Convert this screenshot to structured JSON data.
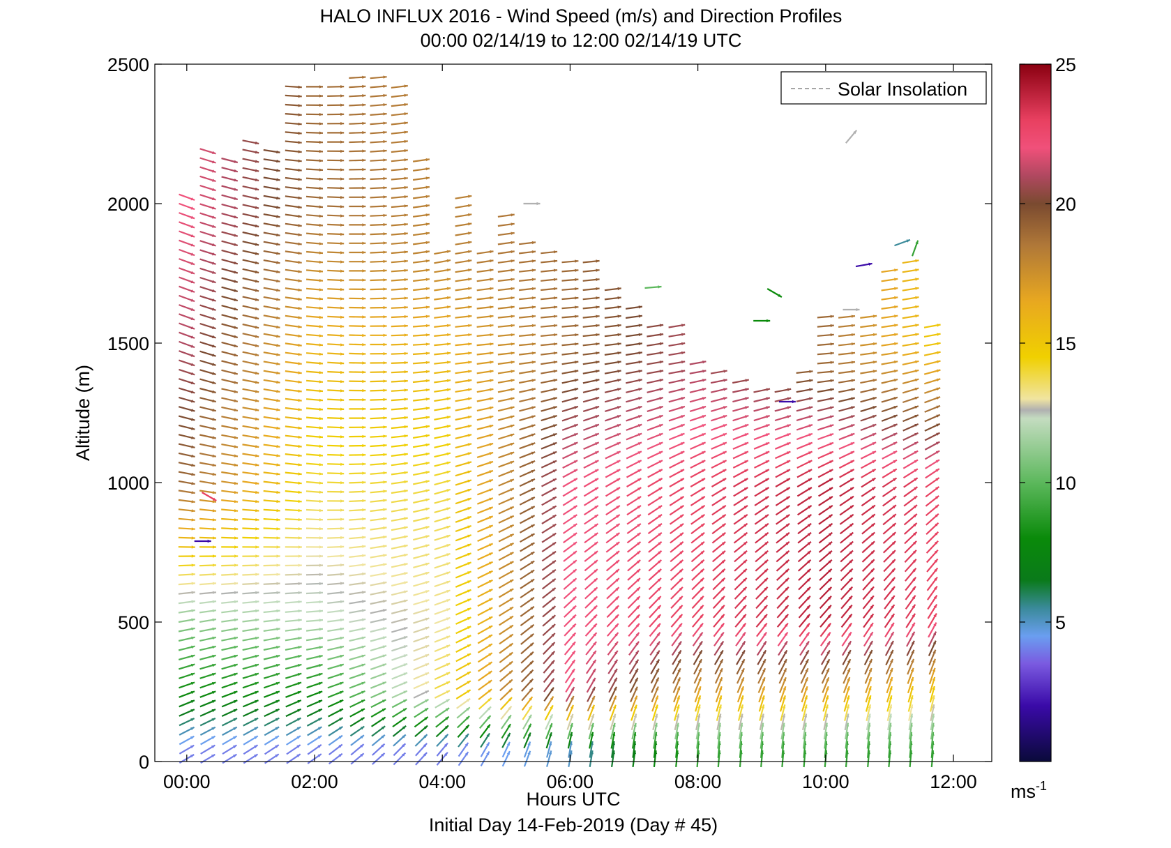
{
  "chart_data": {
    "type": "scatter",
    "subtype": "wind-barb-profile",
    "title": "HALO INFLUX 2016 - Wind Speed (m/s) and Direction Profiles",
    "subtitle": "00:00 02/14/19 to 12:00 02/14/19  UTC",
    "xlabel": "Hours UTC",
    "ylabel": "Altitude (m)",
    "footer": "Initial Day 14-Feb-2019 (Day # 45)",
    "xlim": [
      -0.5,
      12.6
    ],
    "ylim": [
      0,
      2500
    ],
    "x_ticks": [
      0,
      2,
      4,
      6,
      8,
      10,
      12
    ],
    "x_tick_labels": [
      "00:00",
      "02:00",
      "04:00",
      "06:00",
      "08:00",
      "10:00",
      "12:00"
    ],
    "y_ticks": [
      0,
      500,
      1000,
      1500,
      2000,
      2500
    ],
    "y_tick_labels": [
      "0",
      "500",
      "1000",
      "1500",
      "2000",
      "2500"
    ],
    "grid": false,
    "legend": {
      "entries": [
        "Solar Insolation"
      ],
      "placement": "top-right",
      "line_style": "dashed",
      "line_color": "#888888"
    },
    "colorbar": {
      "range": [
        0,
        25
      ],
      "ticks": [
        5,
        10,
        15,
        20,
        25
      ],
      "tick_labels": [
        "5",
        "10",
        "15",
        "20",
        "25"
      ],
      "unit_base": "ms",
      "unit_exp": "-1",
      "stops": [
        {
          "v": 0,
          "color": "#0a0a3a"
        },
        {
          "v": 2,
          "color": "#3a0aa8"
        },
        {
          "v": 3.5,
          "color": "#7a5ae0"
        },
        {
          "v": 4.5,
          "color": "#6a9ef0"
        },
        {
          "v": 5.5,
          "color": "#3a8a9a"
        },
        {
          "v": 6.5,
          "color": "#0a7a1a"
        },
        {
          "v": 8,
          "color": "#0a8a0a"
        },
        {
          "v": 10,
          "color": "#5cb85c"
        },
        {
          "v": 12.3,
          "color": "#c4dcc0"
        },
        {
          "v": 12.6,
          "color": "#b0b0b0"
        },
        {
          "v": 13,
          "color": "#f0e4a0"
        },
        {
          "v": 14.5,
          "color": "#f0d000"
        },
        {
          "v": 16.5,
          "color": "#e8a820"
        },
        {
          "v": 18.5,
          "color": "#b07838"
        },
        {
          "v": 20,
          "color": "#7a4a30"
        },
        {
          "v": 21,
          "color": "#b04860"
        },
        {
          "v": 22,
          "color": "#f0507a"
        },
        {
          "v": 23,
          "color": "#e84060"
        },
        {
          "v": 25,
          "color": "#8a0010"
        }
      ]
    },
    "profile_times": [
      0,
      0.33,
      0.67,
      1.0,
      1.33,
      1.67,
      2.0,
      2.33,
      2.67,
      3.0,
      3.33,
      3.67,
      4.0,
      4.33,
      4.67,
      5.0,
      5.33,
      5.67,
      6.0,
      6.33,
      6.67,
      7.0,
      7.33,
      7.67,
      8.0,
      8.33,
      8.67,
      9.0,
      9.33,
      9.67,
      10.0,
      10.33,
      10.67,
      11.0,
      11.33,
      11.67
    ],
    "profile_top_m": [
      2050,
      2200,
      2180,
      2250,
      2200,
      2450,
      2440,
      2430,
      2480,
      2480,
      2450,
      2180,
      1850,
      2050,
      1850,
      1980,
      1880,
      1850,
      1800,
      1800,
      1700,
      1650,
      1580,
      1570,
      1450,
      1400,
      1380,
      1350,
      1360,
      1400,
      1600,
      1620,
      1620,
      1780,
      1800,
      1580
    ],
    "sample_profiles": [
      {
        "t": 0.0,
        "points": [
          [
            50,
            4,
            60
          ],
          [
            250,
            8,
            70
          ],
          [
            500,
            11,
            80
          ],
          [
            1000,
            19,
            100
          ],
          [
            1500,
            21,
            110
          ],
          [
            2000,
            22,
            110
          ]
        ]
      },
      {
        "t": 2.0,
        "points": [
          [
            50,
            4,
            55
          ],
          [
            250,
            8,
            70
          ],
          [
            500,
            12,
            85
          ],
          [
            1000,
            14,
            95
          ],
          [
            1500,
            16,
            95
          ],
          [
            2000,
            19,
            95
          ],
          [
            2400,
            19,
            90
          ]
        ]
      },
      {
        "t": 4.0,
        "points": [
          [
            50,
            4,
            40
          ],
          [
            250,
            14,
            65
          ],
          [
            500,
            13,
            70
          ],
          [
            1000,
            14,
            75
          ],
          [
            1500,
            16,
            85
          ],
          [
            1800,
            18,
            80
          ]
        ]
      },
      {
        "t": 6.0,
        "points": [
          [
            50,
            5,
            10
          ],
          [
            250,
            22,
            30
          ],
          [
            500,
            22,
            45
          ],
          [
            1000,
            22,
            60
          ],
          [
            1500,
            19,
            85
          ]
        ]
      },
      {
        "t": 8.0,
        "points": [
          [
            50,
            9,
            5
          ],
          [
            250,
            17,
            20
          ],
          [
            500,
            23,
            40
          ],
          [
            1000,
            23,
            60
          ],
          [
            1400,
            21,
            80
          ]
        ]
      },
      {
        "t": 10.0,
        "points": [
          [
            50,
            9,
            5
          ],
          [
            250,
            17,
            20
          ],
          [
            500,
            24,
            40
          ],
          [
            1000,
            24,
            60
          ],
          [
            1400,
            19,
            85
          ]
        ]
      },
      {
        "t": 11.67,
        "points": [
          [
            50,
            9,
            5
          ],
          [
            250,
            15,
            15
          ],
          [
            500,
            23,
            30
          ],
          [
            1000,
            23,
            55
          ],
          [
            1500,
            15,
            80
          ]
        ]
      }
    ],
    "isolated_vectors": [
      {
        "t": 0.25,
        "alt": 790,
        "speed": 2,
        "dir": 90
      },
      {
        "t": 0.35,
        "alt": 950,
        "speed": 23,
        "dir": 120
      },
      {
        "t": 5.4,
        "alt": 2000,
        "speed": 12.6,
        "dir": 90
      },
      {
        "t": 7.3,
        "alt": 1700,
        "speed": 10,
        "dir": 85
      },
      {
        "t": 9.0,
        "alt": 1580,
        "speed": 8,
        "dir": 90
      },
      {
        "t": 9.2,
        "alt": 1680,
        "speed": 8,
        "dir": 120
      },
      {
        "t": 9.4,
        "alt": 1290,
        "speed": 2,
        "dir": 90
      },
      {
        "t": 10.4,
        "alt": 1620,
        "speed": 12.6,
        "dir": 90
      },
      {
        "t": 10.4,
        "alt": 2240,
        "speed": 12.6,
        "dir": 40
      },
      {
        "t": 10.6,
        "alt": 1780,
        "speed": 2,
        "dir": 80
      },
      {
        "t": 11.2,
        "alt": 1860,
        "speed": 5.5,
        "dir": 70
      },
      {
        "t": 11.4,
        "alt": 1840,
        "speed": 9,
        "dir": 20
      }
    ]
  }
}
